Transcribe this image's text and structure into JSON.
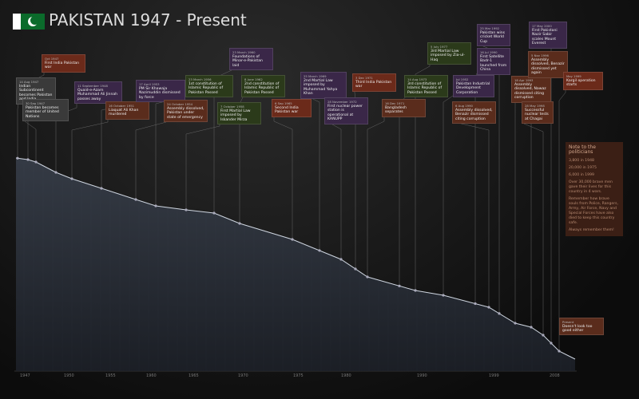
{
  "header": {
    "title": "PAKISTAN 1947 - Present"
  },
  "events": [
    {
      "date": "14 Aug 1947",
      "text": "Indian Subcontinent becomes Pakistan and India"
    },
    {
      "date": "Oct 1947",
      "text": "First India Pakistan war"
    },
    {
      "date": "30 Sep 1947",
      "text": "Pakistan becomes member of United Nations"
    },
    {
      "date": "11 September 1948",
      "text": "Quaid-e-Azam Muhammad Ali Jinnah passes away"
    },
    {
      "date": "16 October 1951",
      "text": "Liaquat Ali Khan murdered"
    },
    {
      "date": "17 April 1953",
      "text": "PM Sir Khawaja Nazimuddin dismissed by force"
    },
    {
      "date": "24 October 1954",
      "text": "Assembly dissolved, Pakistan under state of emergency"
    },
    {
      "date": "23 March 1956",
      "text": "1st constitution of Islamic Republic of Pakistan Passed"
    },
    {
      "date": "7 October 1958",
      "text": "First Martial Law imposed by Iskander Mirza"
    },
    {
      "date": "23 March 1960",
      "text": "Foundations of Minar-e-Pakistan laid"
    },
    {
      "date": "8 June 1962",
      "text": "2nd constitution of Islamic Republic of Pakistan Passed"
    },
    {
      "date": "6 Sep 1965",
      "text": "Second India Pakistan war"
    },
    {
      "date": "25 March 1969",
      "text": "2nd Martial Law imposed by Muhammad Yahya Khan"
    },
    {
      "date": "28 November 1972",
      "text": "First nuclear power station is operational at KANUPP"
    },
    {
      "date": "3 Dec 1971",
      "text": "Third India Pakistan war"
    },
    {
      "date": "16 Dec 1971",
      "text": "Bangladesh separates"
    },
    {
      "date": "14 Aug 1973",
      "text": "3rd constitution of Islamic Republic of Pakistan Passed"
    },
    {
      "date": "5 July 1977",
      "text": "3rd Martial Law imposed by Zia-ul-Haq"
    },
    {
      "date": "Jul 1952",
      "text": "Pakistan Industrial Development Corporation"
    },
    {
      "date": "6 Aug 1990",
      "text": "Assembly dissolved, Benazir dismissed citing corruption"
    },
    {
      "date": "25 Mar 1992",
      "text": "Pakistan wins cricket World Cup"
    },
    {
      "date": "16 Jul 1990",
      "text": "First Satellite Badr-1 launched from China"
    },
    {
      "date": "18 Apr 1993",
      "text": "Assembly dissolved, Nawaz dismissed citing corruption"
    },
    {
      "date": "5 Nov 1996",
      "text": "Assembly dissolved, Benazir dismissed yet again"
    },
    {
      "date": "28 May 1998",
      "text": "Successful nuclear tests at Chagai"
    },
    {
      "date": "May 1999",
      "text": "Kargil operation starts"
    },
    {
      "date": "17 May 2000",
      "text": "First Pakistani Nazir Sabir scales Mount Everest"
    }
  ],
  "note": {
    "title": "Note to the politicians",
    "lines": [
      "3,800 in 1948",
      "20,000 in 1975",
      "6,000 in 1999",
      "Over 30,000 brave men gave their lives for this country in 4 wars.",
      "Remember how brave souls from Police, Rangers, Army, Air Force, Navy and Special Forces have also died to keep this country safe.",
      "Always remember them!"
    ]
  },
  "present": {
    "date": "Present",
    "text": "Doesn't look too good either"
  },
  "years": [
    "1947",
    "1950",
    "1955",
    "1960",
    "1965",
    "1970",
    "1975",
    "1980",
    "1990",
    "1999",
    "2008"
  ]
}
